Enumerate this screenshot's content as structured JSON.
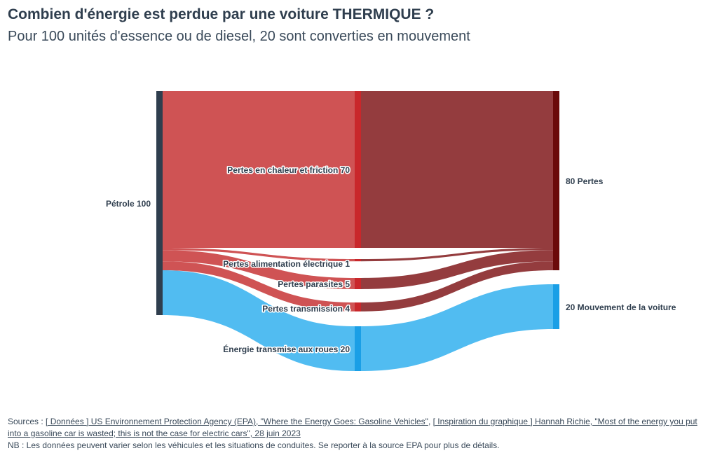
{
  "header": {
    "title": "Combien d'énergie est perdue par une voiture THERMIQUE ?",
    "subtitle": "Pour 100 unités d'essence ou de diesel, 20 sont converties en mouvement"
  },
  "chart_data": {
    "type": "sankey",
    "nodes": [
      {
        "id": "petrole",
        "label": "Pétrole",
        "value": 100,
        "column": 0,
        "color": "#2f3e4e"
      },
      {
        "id": "chaleur",
        "label": "Pertes en chaleur et friction",
        "value": 70,
        "column": 1,
        "color": "#c9272b"
      },
      {
        "id": "alim",
        "label": "Pertes alimentation électrique",
        "value": 1,
        "column": 1,
        "color": "#c9272b"
      },
      {
        "id": "parasites",
        "label": "Pertes parasites",
        "value": 5,
        "column": 1,
        "color": "#c9272b"
      },
      {
        "id": "transmission",
        "label": "Pertes transmission",
        "value": 4,
        "column": 1,
        "color": "#c9272b"
      },
      {
        "id": "roues",
        "label": "Énergie transmise aux roues",
        "value": 20,
        "column": 1,
        "color": "#1a9fe6"
      },
      {
        "id": "pertes",
        "label": "Pertes",
        "value": 80,
        "column": 2,
        "color": "#6b0a0a"
      },
      {
        "id": "mouvement",
        "label": "Mouvement de la voiture",
        "value": 20,
        "column": 2,
        "color": "#1a9fe6"
      }
    ],
    "links": [
      {
        "source": "petrole",
        "target": "chaleur",
        "value": 70,
        "color": "#cc4a4b"
      },
      {
        "source": "petrole",
        "target": "alim",
        "value": 1,
        "color": "#cc4a4b"
      },
      {
        "source": "petrole",
        "target": "parasites",
        "value": 5,
        "color": "#cc4a4b"
      },
      {
        "source": "petrole",
        "target": "transmission",
        "value": 4,
        "color": "#cc4a4b"
      },
      {
        "source": "petrole",
        "target": "roues",
        "value": 20,
        "color": "#48b8f0"
      },
      {
        "source": "chaleur",
        "target": "pertes",
        "value": 70,
        "color": "#8e3234"
      },
      {
        "source": "alim",
        "target": "pertes",
        "value": 1,
        "color": "#8e3234"
      },
      {
        "source": "parasites",
        "target": "pertes",
        "value": 5,
        "color": "#8e3234"
      },
      {
        "source": "transmission",
        "target": "pertes",
        "value": 4,
        "color": "#8e3234"
      },
      {
        "source": "roues",
        "target": "mouvement",
        "value": 20,
        "color": "#48b8f0"
      }
    ],
    "node_labels": {
      "petrole": "Pétrole 100",
      "chaleur": "Pertes en chaleur et friction 70",
      "alim": "Pertes alimentation électrique 1",
      "parasites": "Pertes parasites 5",
      "transmission": "Pertes transmission 4",
      "roues": "Énergie transmise aux roues 20",
      "pertes": "80 Pertes",
      "mouvement": "20 Mouvement de la voiture"
    }
  },
  "footer": {
    "sources_prefix": "Sources : ",
    "source1": "[ Données ] US Environnement Protection Agency (EPA), \"Where the Energy Goes: Gasoline Vehicles\"",
    "separator": ", ",
    "source2": "[ Inspiration du graphique ] Hannah Richie, \"Most of the energy you put into a gasoline car is wasted; this is not the case for electric cars\", 28 juin 2023",
    "note": "NB : Les données peuvent varier selon les véhicules et les situations de conduites. Se reporter à la source EPA pour plus de détails."
  }
}
